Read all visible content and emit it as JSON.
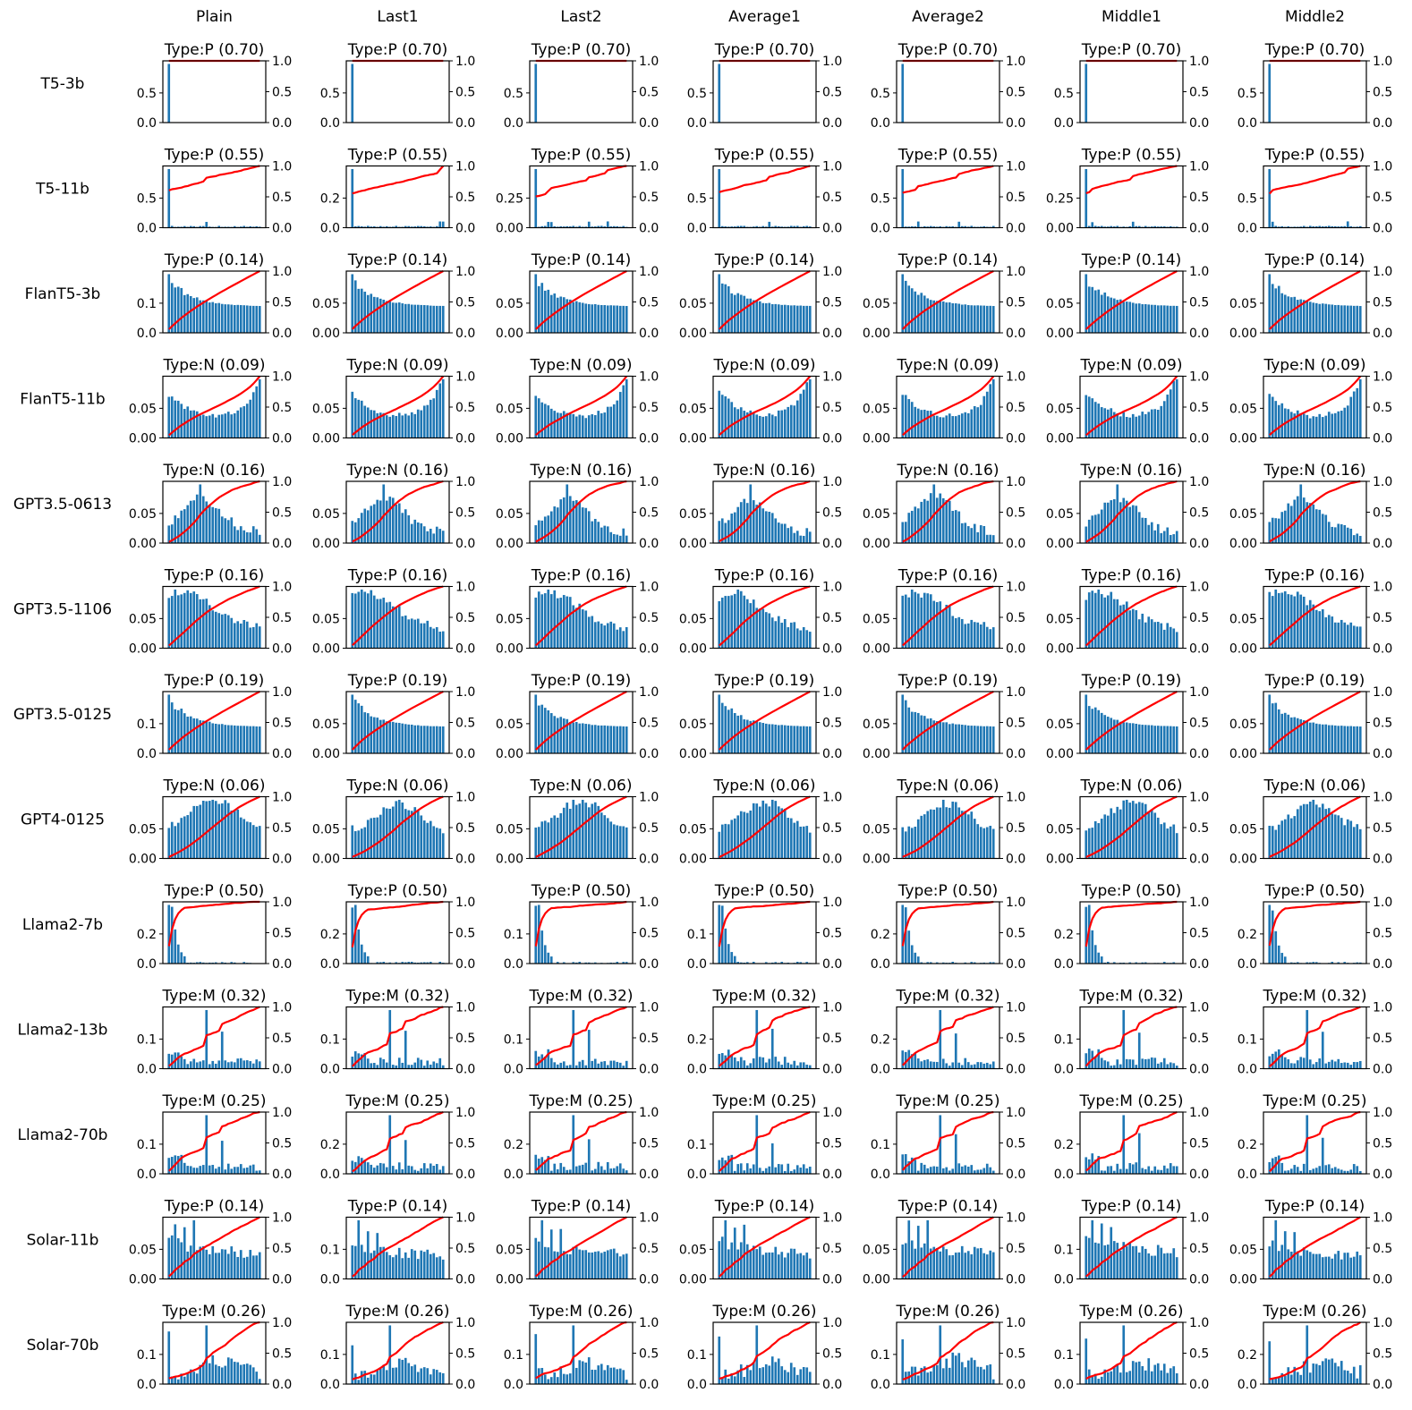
{
  "chart_data": {
    "type": "bar",
    "description_note": "Grid of histograms (blue bars) with cumulative curves (red line, right axis 0-1)",
    "columns": [
      "Plain",
      "Last1",
      "Last2",
      "Average1",
      "Average2",
      "Middle1",
      "Middle2"
    ],
    "rows": [
      {
        "model": "T5-3b",
        "type_label": "Type:P (0.70)",
        "right_ticks": [
          "0.0",
          "0.5",
          "1.0"
        ],
        "left_ticks": [
          [
            "0.0",
            "0.5"
          ],
          [
            "0.0",
            "0.5"
          ],
          [
            "0.0",
            "0.5"
          ],
          [
            "0.0",
            "0.5"
          ],
          [
            "0.0",
            "0.5"
          ],
          [
            "0.0",
            "0.5"
          ],
          [
            "0.0",
            "0.5"
          ]
        ]
      },
      {
        "model": "T5-11b",
        "type_label": "Type:P (0.55)",
        "right_ticks": [
          "0.0",
          "0.5",
          "1.0"
        ],
        "left_ticks": [
          [
            "0.0",
            "0.5"
          ],
          [
            "0.0",
            "0.2"
          ],
          [
            "0.00",
            "0.25"
          ],
          [
            "0.0",
            "0.5"
          ],
          [
            "0.0",
            "0.5"
          ],
          [
            "0.00",
            "0.25"
          ],
          [
            "0.0",
            "0.5"
          ]
        ]
      },
      {
        "model": "FlanT5-3b",
        "type_label": "Type:P (0.14)",
        "right_ticks": [
          "0.0",
          "0.5",
          "1.0"
        ],
        "left_ticks": [
          [
            "0.0",
            "0.1"
          ],
          [
            "0.00",
            "0.05"
          ],
          [
            "0.00",
            "0.05"
          ],
          [
            "0.00",
            "0.05"
          ],
          [
            "0.00",
            "0.05"
          ],
          [
            "0.00",
            "0.05"
          ],
          [
            "0.00",
            "0.05"
          ]
        ]
      },
      {
        "model": "FlanT5-11b",
        "type_label": "Type:N (0.09)",
        "right_ticks": [
          "0.0",
          "0.5",
          "1.0"
        ],
        "left_ticks": [
          [
            "0.00",
            "0.05"
          ],
          [
            "0.00",
            "0.05"
          ],
          [
            "0.00",
            "0.05"
          ],
          [
            "0.00",
            "0.05"
          ],
          [
            "0.00",
            "0.05"
          ],
          [
            "0.00",
            "0.05"
          ],
          [
            "0.00",
            "0.05"
          ]
        ]
      },
      {
        "model": "GPT3.5-0613",
        "type_label": "Type:N (0.16)",
        "right_ticks": [
          "0.0",
          "0.5",
          "1.0"
        ],
        "left_ticks": [
          [
            "0.00",
            "0.05"
          ],
          [
            "0.00",
            "0.05"
          ],
          [
            "0.00",
            "0.05"
          ],
          [
            "0.00",
            "0.05"
          ],
          [
            "0.00",
            "0.05"
          ],
          [
            "0.00",
            "0.05"
          ],
          [
            "0.00",
            "0.05"
          ]
        ]
      },
      {
        "model": "GPT3.5-1106",
        "type_label": "Type:P (0.16)",
        "right_ticks": [
          "0.0",
          "0.5",
          "1.0"
        ],
        "left_ticks": [
          [
            "0.00",
            "0.05"
          ],
          [
            "0.00",
            "0.05"
          ],
          [
            "0.00",
            "0.05"
          ],
          [
            "0.00",
            "0.05"
          ],
          [
            "0.00",
            "0.05"
          ],
          [
            "0.00",
            "0.05"
          ],
          [
            "0.00",
            "0.05"
          ]
        ]
      },
      {
        "model": "GPT3.5-0125",
        "type_label": "Type:P (0.19)",
        "right_ticks": [
          "0.0",
          "0.5",
          "1.0"
        ],
        "left_ticks": [
          [
            "0.0",
            "0.1"
          ],
          [
            "0.00",
            "0.05"
          ],
          [
            "0.00",
            "0.05"
          ],
          [
            "0.00",
            "0.05"
          ],
          [
            "0.00",
            "0.05"
          ],
          [
            "0.00",
            "0.05"
          ],
          [
            "0.00",
            "0.05"
          ]
        ]
      },
      {
        "model": "GPT4-0125",
        "type_label": "Type:N (0.06)",
        "right_ticks": [
          "0.0",
          "0.5",
          "1.0"
        ],
        "left_ticks": [
          [
            "0.00",
            "0.05"
          ],
          [
            "0.00",
            "0.05"
          ],
          [
            "0.00",
            "0.05"
          ],
          [
            "0.00",
            "0.05"
          ],
          [
            "0.00",
            "0.05"
          ],
          [
            "0.00",
            "0.05"
          ],
          [
            "0.00",
            "0.05"
          ]
        ]
      },
      {
        "model": "Llama2-7b",
        "type_label": "Type:P (0.50)",
        "right_ticks": [
          "0.0",
          "0.5",
          "1.0"
        ],
        "left_ticks": [
          [
            "0.0",
            "0.2"
          ],
          [
            "0.0",
            "0.2"
          ],
          [
            "0.0",
            "0.1"
          ],
          [
            "0.0",
            "0.1"
          ],
          [
            "0.0",
            "0.2"
          ],
          [
            "0.0",
            "0.2"
          ],
          [
            "0.0",
            "0.2"
          ]
        ]
      },
      {
        "model": "Llama2-13b",
        "type_label": "Type:M (0.32)",
        "right_ticks": [
          "0.0",
          "0.5",
          "1.0"
        ],
        "left_ticks": [
          [
            "0.0",
            "0.1"
          ],
          [
            "0.0",
            "0.1"
          ],
          [
            "0.0",
            "0.1"
          ],
          [
            "0.0",
            "0.2"
          ],
          [
            "0.0",
            "0.2"
          ],
          [
            "0.0",
            "0.1"
          ],
          [
            "0.0",
            "0.1"
          ]
        ]
      },
      {
        "model": "Llama2-70b",
        "type_label": "Type:M (0.25)",
        "right_ticks": [
          "0.0",
          "0.5",
          "1.0"
        ],
        "left_ticks": [
          [
            "0.0",
            "0.1"
          ],
          [
            "0.0",
            "0.2"
          ],
          [
            "0.0",
            "0.2"
          ],
          [
            "0.0",
            "0.1"
          ],
          [
            "0.0",
            "0.1"
          ],
          [
            "0.0",
            "0.2"
          ],
          [
            "0.0",
            "0.2"
          ]
        ]
      },
      {
        "model": "Solar-11b",
        "type_label": "Type:P (0.14)",
        "right_ticks": [
          "0.0",
          "0.5",
          "1.0"
        ],
        "left_ticks": [
          [
            "0.00",
            "0.05"
          ],
          [
            "0.0",
            "0.1"
          ],
          [
            "0.00",
            "0.05"
          ],
          [
            "0.00",
            "0.05"
          ],
          [
            "0.00",
            "0.05"
          ],
          [
            "0.0",
            "0.1"
          ],
          [
            "0.00",
            "0.05"
          ]
        ]
      },
      {
        "model": "Solar-70b",
        "type_label": "Type:M (0.26)",
        "right_ticks": [
          "0.0",
          "0.5",
          "1.0"
        ],
        "left_ticks": [
          [
            "0.0",
            "0.1"
          ],
          [
            "0.0",
            "0.1"
          ],
          [
            "0.0",
            "0.1"
          ],
          [
            "0.0",
            "0.1"
          ],
          [
            "0.0",
            "0.1"
          ],
          [
            "0.0",
            "0.1"
          ],
          [
            "0.0",
            "0.2"
          ]
        ]
      }
    ],
    "shapes": {
      "T5-3b": "spike_first",
      "T5-11b": "spike_first_small",
      "FlanT5-3b": "decreasing",
      "FlanT5-11b": "u_shape",
      "GPT3.5-0613": "hump",
      "GPT3.5-1106": "decreasing_hump",
      "GPT3.5-0125": "decreasing",
      "GPT4-0125": "broad_hump",
      "Llama2-7b": "early_peak",
      "Llama2-13b": "mid_spikes",
      "Llama2-70b": "mid_spikes",
      "Solar-11b": "decreasing_spiky",
      "Solar-70b": "mid_late"
    },
    "bars_per_panel": 30,
    "bar_color": "#1f77b4",
    "cdf_color": "#ff0000",
    "right_axis_range": [
      0,
      1
    ]
  }
}
